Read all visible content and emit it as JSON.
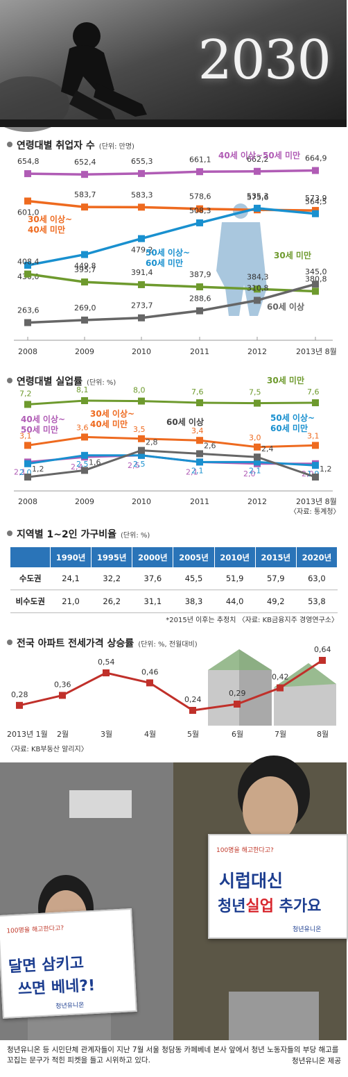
{
  "hero": {
    "title": "2030"
  },
  "chart_data": [
    {
      "type": "line",
      "title": "연령대별 취업자 수",
      "unit": "(단위: 만명)",
      "categories": [
        "2008",
        "2009",
        "2010",
        "2011",
        "2012",
        "2013년 8월"
      ],
      "series": [
        {
          "name": "40세 이상~50세 미만",
          "color": "#b05cb5",
          "values": [
            654.8,
            652.4,
            655.3,
            661.1,
            662.2,
            664.9
          ],
          "labels": [
            "654,8",
            "652,4",
            "655,3",
            "661,1",
            "662,2",
            "664,9"
          ]
        },
        {
          "name": "30세 이상~ 40세 미만",
          "color": "#ee6a1f",
          "values": [
            601.0,
            583.7,
            583.3,
            578.6,
            575.6,
            573.9
          ],
          "labels": [
            "601,0",
            "583,7",
            "583,3",
            "578,6",
            "575,6",
            "573,9"
          ]
        },
        {
          "name": "50세 이상~ 60세 미만",
          "color": "#1990cf",
          "values": [
            430.0,
            449.8,
            479.2,
            508.3,
            535.3,
            564.5
          ],
          "labels": [
            "430,0",
            "449,8",
            "479,2",
            "508,3",
            "535,3",
            "564,5"
          ]
        },
        {
          "name": "30세 미만",
          "color": "#6e9a2e",
          "values": [
            408.4,
            395.7,
            391.4,
            387.9,
            384.3,
            380.8
          ],
          "labels": [
            "408,4",
            "395,7",
            "391,4",
            "387,9",
            "384,3",
            "380,8"
          ]
        },
        {
          "name": "60세 이상",
          "color": "#666666",
          "values": [
            263.6,
            269.0,
            273.7,
            288.6,
            310.8,
            345.0
          ],
          "labels": [
            "263,6",
            "269,0",
            "273,7",
            "288,6",
            "310,8",
            "345,0"
          ]
        }
      ]
    },
    {
      "type": "line",
      "title": "연령대별 실업률",
      "unit": "(단위: %)",
      "source": "〈자료: 통계청〉",
      "categories": [
        "2008",
        "2009",
        "2010",
        "2011",
        "2012",
        "2013년 8월"
      ],
      "series": [
        {
          "name": "30세 미만",
          "color": "#6e9a2e",
          "values": [
            7.2,
            8.1,
            8.0,
            7.6,
            7.5,
            7.6
          ],
          "labels": [
            "7,2",
            "8,1",
            "8,0",
            "7,6",
            "7,5",
            "7,6"
          ]
        },
        {
          "name": "30세 이상~ 40세 미만",
          "color": "#ee6a1f",
          "values": [
            3.1,
            3.6,
            3.5,
            3.4,
            3.0,
            3.1
          ],
          "labels": [
            "3,1",
            "3,6",
            "3,5",
            "3,4",
            "3,0",
            "3,1"
          ]
        },
        {
          "name": "40세 이상~ 50세 미만",
          "color": "#b05cb5",
          "values": [
            2.1,
            2.4,
            2.5,
            2.1,
            2.0,
            2.0
          ],
          "labels": [
            "2,1",
            "2,4",
            "2,5",
            "2,1",
            "2,0",
            "2,0"
          ]
        },
        {
          "name": "50세 이상~ 60세 미만",
          "color": "#1990cf",
          "values": [
            2.0,
            2.5,
            2.5,
            2.1,
            2.1,
            1.9
          ],
          "labels": [
            "2,0",
            "2,5",
            "2,5",
            "2,1",
            "2,1",
            "1,9"
          ]
        },
        {
          "name": "60세 이상",
          "color": "#666666",
          "values": [
            1.2,
            1.6,
            2.8,
            2.6,
            2.4,
            1.2
          ],
          "labels": [
            "1,2",
            "1,6",
            "2,8",
            "2,6",
            "2,4",
            "1,2"
          ]
        }
      ]
    },
    {
      "type": "table",
      "title": "지역별 1~2인 가구비율",
      "unit": "(단위: %)",
      "columns": [
        "1990년",
        "1995년",
        "2000년",
        "2005년",
        "2010년",
        "2015년",
        "2020년"
      ],
      "rows": [
        {
          "label": "수도권",
          "values": [
            "24,1",
            "32,2",
            "37,6",
            "45,5",
            "51,9",
            "57,9",
            "63,0"
          ]
        },
        {
          "label": "비수도권",
          "values": [
            "21,0",
            "26,2",
            "31,1",
            "38,3",
            "44,0",
            "49,2",
            "53,8"
          ]
        }
      ],
      "note": "*2015년 이후는 추정치 〈자료: KB금융지주 경영연구소〉"
    },
    {
      "type": "line",
      "title": "전국 아파트 전세가격 상승률",
      "unit": "(단위: %, 전월대비)",
      "source": "〈자료: KB부동산 알리지〉",
      "categories": [
        "2013년 1월",
        "2월",
        "3월",
        "4월",
        "5월",
        "6월",
        "7월",
        "8월"
      ],
      "series": [
        {
          "color": "#c0302a",
          "values": [
            0.28,
            0.36,
            0.54,
            0.46,
            0.24,
            0.29,
            0.42,
            0.64
          ],
          "labels": [
            "0,28",
            "0,36",
            "0,54",
            "0,46",
            "0,24",
            "0,29",
            "0,42",
            "0,64"
          ]
        }
      ]
    }
  ],
  "photo": {
    "sign_left": {
      "small": "100명을 해고한다고?",
      "line1": "달면 삼키고",
      "line2": "쓰면 베네?!",
      "org": "청년유니온"
    },
    "sign_right": {
      "small": "100명을 해고한다고?",
      "line1": "시럽대신",
      "line2a": "청년",
      "line2b": "실업",
      "line2c": " 추가요",
      "org": "청년유니온"
    }
  },
  "caption": {
    "text": "청년유니온 등 시민단체 관계자들이 지난 7월 서울 청담동 카페베네 본사 앞에서 청년 노동자들의 부당 해고를 꼬집는 문구가 적힌 피켓을 들고 시위하고 있다.",
    "credit": "청년유니온 제공"
  }
}
